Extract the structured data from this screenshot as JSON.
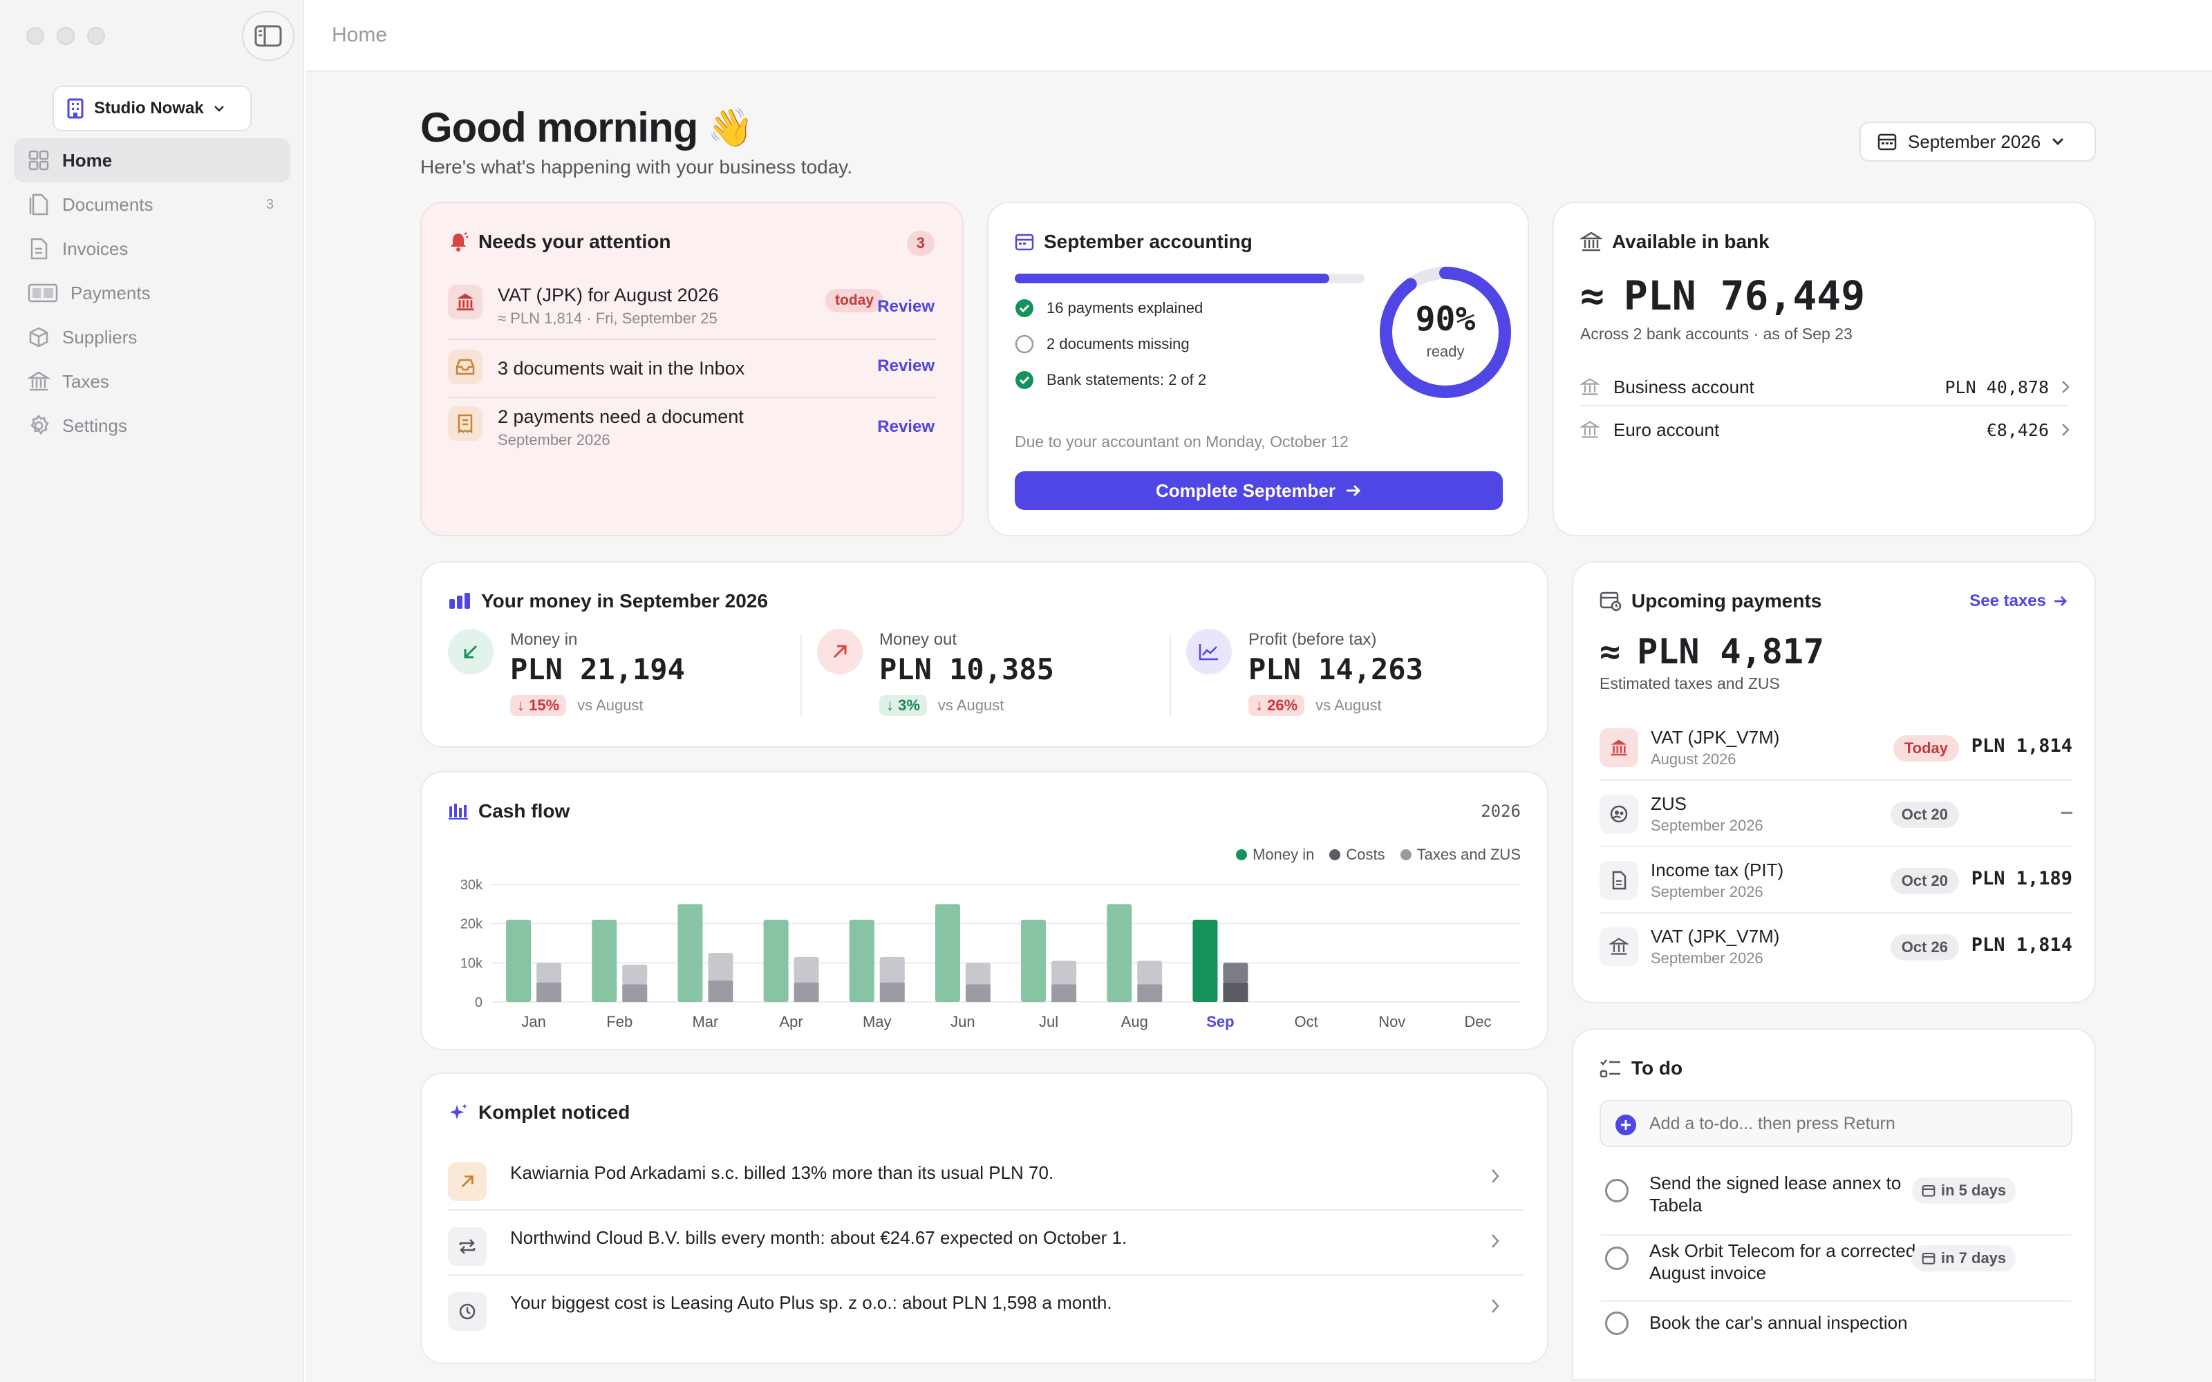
{
  "window": {
    "breadcrumb": "Home"
  },
  "sidebar": {
    "workspace": "Studio Nowak",
    "items": [
      {
        "label": "Home",
        "icon": "grid-icon",
        "count": ""
      },
      {
        "label": "Documents",
        "icon": "document-icon",
        "count": "3"
      },
      {
        "label": "Invoices",
        "icon": "invoice-icon",
        "count": ""
      },
      {
        "label": "Payments",
        "icon": "payments-icon",
        "count": ""
      },
      {
        "label": "Suppliers",
        "icon": "box-icon",
        "count": ""
      },
      {
        "label": "Taxes",
        "icon": "bank-icon",
        "count": ""
      },
      {
        "label": "Settings",
        "icon": "gear-icon",
        "count": ""
      }
    ]
  },
  "header": {
    "greeting": "Good morning",
    "emoji": "👋",
    "subtitle": "Here's what's happening with your business today.",
    "month": "September 2026"
  },
  "attention": {
    "title": "Needs your attention",
    "count": "3",
    "items": [
      {
        "title": "VAT (JPK) for August 2026",
        "sub": "≈ PLN 1,814 · Fri, September 25",
        "tag": "today",
        "action": "Review"
      },
      {
        "title": "3 documents wait in the Inbox",
        "sub": "",
        "tag": "",
        "action": "Review"
      },
      {
        "title": "2 payments need a document",
        "sub": "September 2026",
        "tag": "",
        "action": "Review"
      }
    ]
  },
  "accounting": {
    "title": "September accounting",
    "progress": 0.9,
    "percent": "90%",
    "ready": "ready",
    "checks": [
      {
        "label": "16 payments explained",
        "done": true
      },
      {
        "label": "2 documents missing",
        "done": false
      },
      {
        "label": "Bank statements: 2 of 2",
        "done": true
      }
    ],
    "due": "Due to your accountant on Monday, October 12",
    "button": "Complete September"
  },
  "bank": {
    "title": "Available in bank",
    "approx": "≈",
    "total": "PLN 76,449",
    "sub": "Across 2 bank accounts · as of Sep 23",
    "accounts": [
      {
        "name": "Business account",
        "amount": "PLN 40,878"
      },
      {
        "name": "Euro account",
        "amount": "€8,426"
      }
    ]
  },
  "money": {
    "title": "Your money in September 2026",
    "metrics": [
      {
        "label": "Money in",
        "value": "PLN 21,194",
        "delta": "15%",
        "vs": "vs August"
      },
      {
        "label": "Money out",
        "value": "PLN 10,385",
        "delta": "3%",
        "vs": "vs August"
      },
      {
        "label": "Profit (before tax)",
        "value": "PLN 14,263",
        "delta": "26%",
        "vs": "vs August"
      }
    ]
  },
  "cashflow": {
    "title": "Cash flow",
    "year": "2026"
  },
  "chart_data": {
    "type": "bar",
    "stacked_secondary": true,
    "categories": [
      "Jan",
      "Feb",
      "Mar",
      "Apr",
      "May",
      "Jun",
      "Jul",
      "Aug",
      "Sep",
      "Oct",
      "Nov",
      "Dec"
    ],
    "highlight": "Sep",
    "series": [
      {
        "name": "Money in",
        "values": [
          21000,
          21000,
          25000,
          21000,
          21000,
          25000,
          21000,
          25000,
          21000,
          null,
          null,
          null
        ]
      },
      {
        "name": "Costs",
        "values": [
          5000,
          4500,
          5500,
          5000,
          5000,
          4500,
          4500,
          4500,
          5000,
          null,
          null,
          null
        ]
      },
      {
        "name": "Taxes and ZUS",
        "values": [
          5000,
          5000,
          7000,
          6500,
          6500,
          5500,
          6000,
          6000,
          5000,
          null,
          null,
          null
        ]
      }
    ],
    "yticks": [
      "0",
      "10k",
      "20k",
      "30k"
    ],
    "ylim": [
      0,
      30000
    ],
    "legend": "top-right",
    "grid": true,
    "colors": {
      "money_in": "#86c4a4",
      "money_in_current": "#13925a",
      "costs": "#c7c8ce",
      "taxes": "#9a9ba3",
      "costs_current": "#7b7c85",
      "taxes_current": "#5a5b63"
    }
  },
  "noticed": {
    "title": "Komplet noticed",
    "items": [
      {
        "text": "Kawiarnia Pod Arkadami s.c. billed 13% more than its usual PLN 70.",
        "icon": "arrow-up-right-icon"
      },
      {
        "text": "Northwind Cloud B.V. bills every month: about €24.67 expected on October 1.",
        "icon": "repeat-icon"
      },
      {
        "text": "Your biggest cost is Leasing Auto Plus sp. z o.o.: about PLN 1,598 a month.",
        "icon": "clock-icon"
      }
    ]
  },
  "upcoming": {
    "title": "Upcoming payments",
    "link": "See taxes",
    "approx": "≈",
    "total": "PLN 4,817",
    "sub": "Estimated taxes and ZUS",
    "items": [
      {
        "title": "VAT (JPK_V7M)",
        "sub": "August 2026",
        "date": "Today",
        "amount": "PLN 1,814"
      },
      {
        "title": "ZUS",
        "sub": "September 2026",
        "date": "Oct 20",
        "amount": "–"
      },
      {
        "title": "Income tax (PIT)",
        "sub": "September 2026",
        "date": "Oct 20",
        "amount": "PLN 1,189"
      },
      {
        "title": "VAT (JPK_V7M)",
        "sub": "September 2026",
        "date": "Oct 26",
        "amount": "PLN 1,814"
      }
    ]
  },
  "todo": {
    "title": "To do",
    "placeholder": "Add a to-do... then press Return",
    "items": [
      {
        "text": "Send the signed lease annex to Tabela",
        "due": "in 5 days"
      },
      {
        "text": "Ask Orbit Telecom for a corrected August invoice",
        "due": "in 7 days"
      },
      {
        "text": "Book the car's annual inspection",
        "due": ""
      }
    ]
  }
}
